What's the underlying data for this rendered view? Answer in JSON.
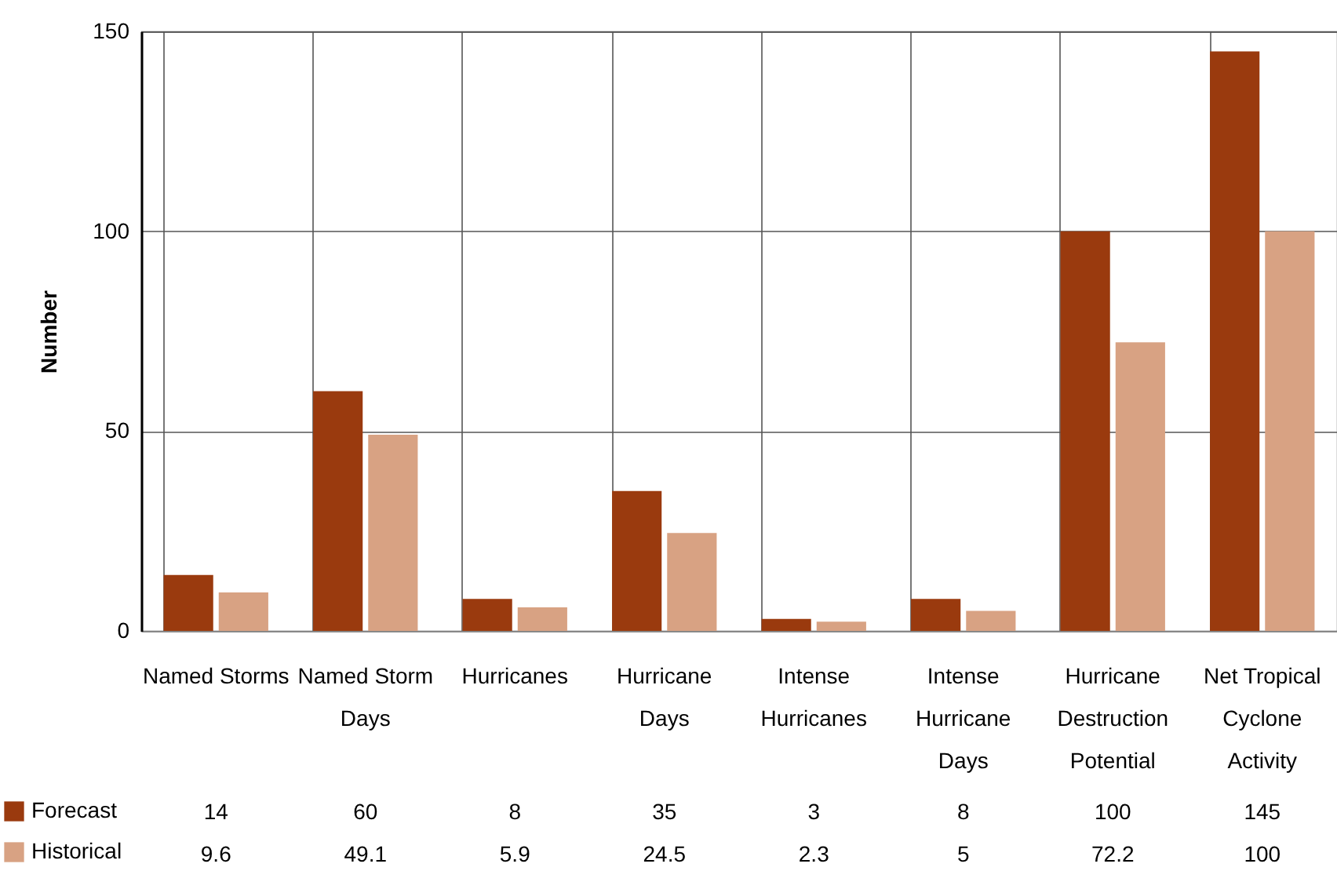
{
  "chart_data": {
    "type": "bar",
    "ylabel": "Number",
    "categories": [
      "Named Storms",
      "Named Storm Days",
      "Hurricanes",
      "Hurricane Days",
      "Intense Hurricanes",
      "Intense Hurricane Days",
      "Hurricane Destruction Potential",
      "Net Tropical Cyclone Activity"
    ],
    "series": [
      {
        "name": "Forecast",
        "color": "#9a3a0e",
        "values": [
          14,
          60,
          8,
          35,
          3,
          8,
          100,
          145
        ]
      },
      {
        "name": "Historical",
        "color": "#d8a283",
        "values": [
          9.6,
          49.1,
          5.9,
          24.5,
          2.3,
          5,
          72.2,
          100
        ]
      }
    ],
    "ylim": [
      0,
      150
    ],
    "yticks": [
      0,
      50,
      100,
      150
    ],
    "grid": true,
    "legend": "bottom left",
    "data_labels": true
  }
}
